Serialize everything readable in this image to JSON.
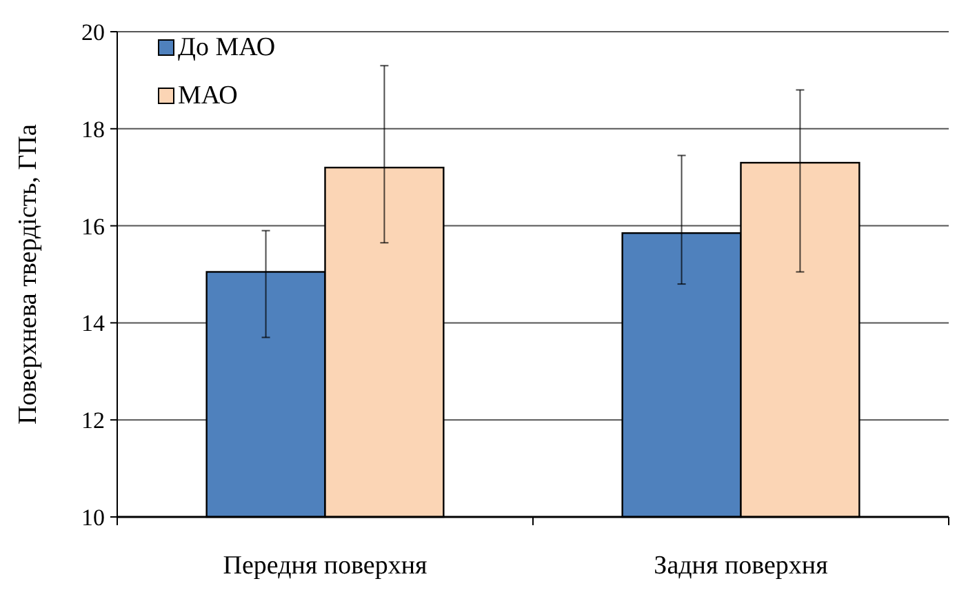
{
  "chart_data": {
    "type": "bar",
    "ylabel": "Поверхнева твердість, ГПа",
    "categories": [
      "Передня поверхня",
      "Задня поверхня"
    ],
    "series": [
      {
        "name": "До МАО",
        "color": "#4f81bd",
        "values": [
          15.05,
          15.85
        ],
        "errors": [
          [
            13.7,
            15.9
          ],
          [
            14.8,
            17.45
          ]
        ]
      },
      {
        "name": "МАО",
        "color": "#fbd5b5",
        "values": [
          17.2,
          17.3
        ],
        "errors": [
          [
            15.65,
            19.3
          ],
          [
            15.05,
            18.8
          ]
        ]
      }
    ],
    "ylim": [
      10,
      20
    ],
    "yticks": [
      10,
      12,
      14,
      16,
      18,
      20
    ],
    "grid": "y",
    "legend": "top left"
  }
}
